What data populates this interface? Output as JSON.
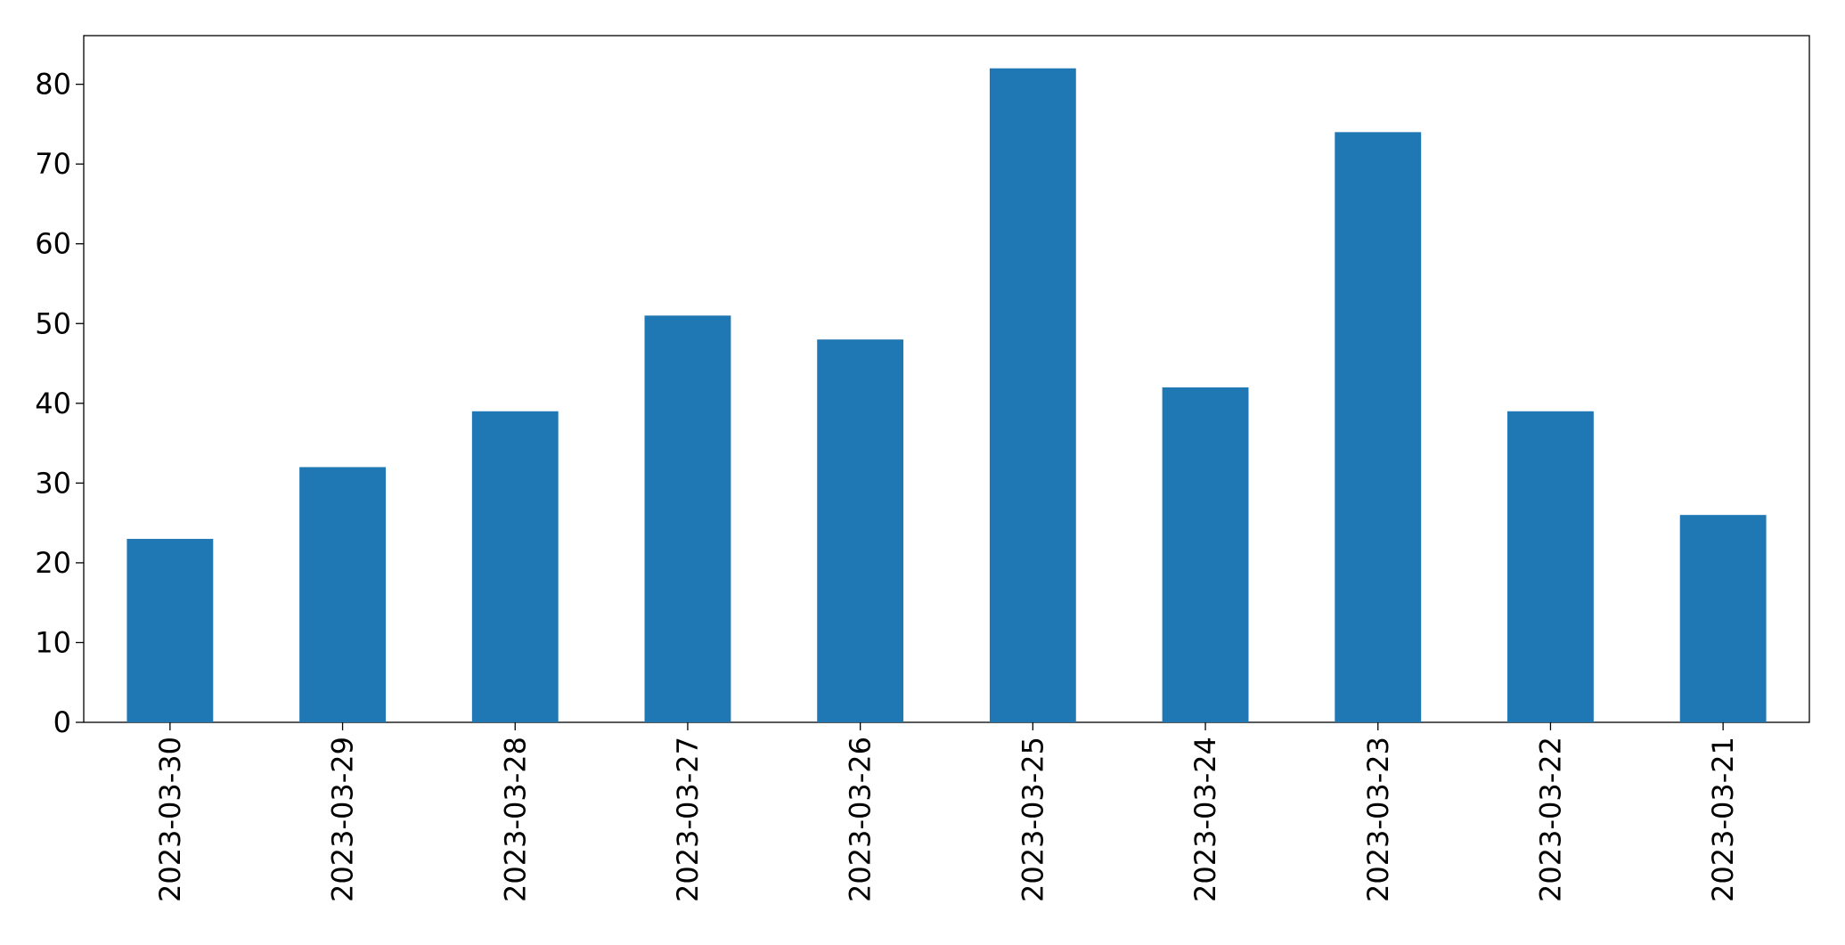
{
  "chart_data": {
    "type": "bar",
    "categories": [
      "2023-03-30",
      "2023-03-29",
      "2023-03-28",
      "2023-03-27",
      "2023-03-26",
      "2023-03-25",
      "2023-03-24",
      "2023-03-23",
      "2023-03-22",
      "2023-03-21"
    ],
    "values": [
      23,
      32,
      39,
      51,
      48,
      82,
      42,
      74,
      39,
      26
    ],
    "color": "#1f77b4",
    "ylim": [
      0,
      86.1
    ],
    "yticks": [
      0,
      10,
      20,
      30,
      40,
      50,
      60,
      70,
      80
    ],
    "grid": false
  }
}
